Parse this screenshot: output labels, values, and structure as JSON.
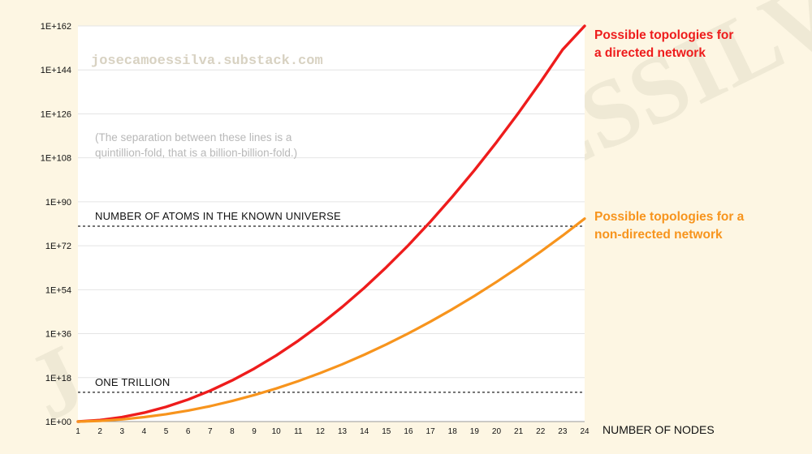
{
  "watermark": "JOSECAMOESSILVA",
  "site": "josecamoessilva.substack.com",
  "note_lines": [
    "(The separation between these lines is a",
    "quintillion-fold, that is a billion-billion-fold.)"
  ],
  "chart_data": {
    "type": "line",
    "xlabel": "NUMBER OF NODES",
    "ylabel": "",
    "yscale": "log10",
    "ylim": [
      0,
      162
    ],
    "x_ticks": [
      1,
      2,
      3,
      4,
      5,
      6,
      7,
      8,
      9,
      10,
      11,
      12,
      13,
      14,
      15,
      16,
      17,
      18,
      19,
      20,
      21,
      22,
      23,
      24
    ],
    "y_ticks": [
      {
        "exp": 0,
        "label": "1E+00"
      },
      {
        "exp": 18,
        "label": "1E+18"
      },
      {
        "exp": 36,
        "label": "1E+36"
      },
      {
        "exp": 54,
        "label": "1E+54"
      },
      {
        "exp": 72,
        "label": "1E+72"
      },
      {
        "exp": 90,
        "label": "1E+90"
      },
      {
        "exp": 108,
        "label": "1E+108"
      },
      {
        "exp": 126,
        "label": "1E+126"
      },
      {
        "exp": 144,
        "label": "1E+144"
      },
      {
        "exp": 162,
        "label": "1E+162"
      }
    ],
    "grid": "horizontal",
    "series": [
      {
        "name": "Possible topologies for a directed network",
        "label_lines": [
          "Possible topologies for",
          "a directed network"
        ],
        "color": "#ee1c1c",
        "x": [
          1,
          2,
          3,
          4,
          5,
          6,
          7,
          8,
          9,
          10,
          11,
          12,
          13,
          14,
          15,
          16,
          17,
          18,
          19,
          20,
          21,
          22,
          23,
          24
        ],
        "y_log10": [
          0,
          0.6,
          1.81,
          3.61,
          6.02,
          9.03,
          12.64,
          16.86,
          21.67,
          27.09,
          33.11,
          39.74,
          46.96,
          54.79,
          63.21,
          72.24,
          81.87,
          92.11,
          102.94,
          114.38,
          126.42,
          139.06,
          152.3,
          166.15
        ]
      },
      {
        "name": "Possible topologies for a non-directed network",
        "label_lines": [
          "Possible topologies for a",
          "non-directed network"
        ],
        "color": "#f7941d",
        "x": [
          1,
          2,
          3,
          4,
          5,
          6,
          7,
          8,
          9,
          10,
          11,
          12,
          13,
          14,
          15,
          16,
          17,
          18,
          19,
          20,
          21,
          22,
          23,
          24
        ],
        "y_log10": [
          0,
          0.3,
          0.9,
          1.81,
          3.01,
          4.52,
          6.32,
          8.43,
          10.84,
          13.55,
          16.56,
          19.87,
          23.48,
          27.39,
          31.61,
          36.12,
          40.94,
          46.05,
          51.47,
          57.19,
          63.21,
          69.53,
          76.15,
          83.08
        ]
      }
    ],
    "reference_lines": [
      {
        "name": "NUMBER OF ATOMS IN THE KNOWN UNIVERSE",
        "log10": 80
      },
      {
        "name": "ONE TRILLION",
        "log10": 12
      }
    ]
  }
}
